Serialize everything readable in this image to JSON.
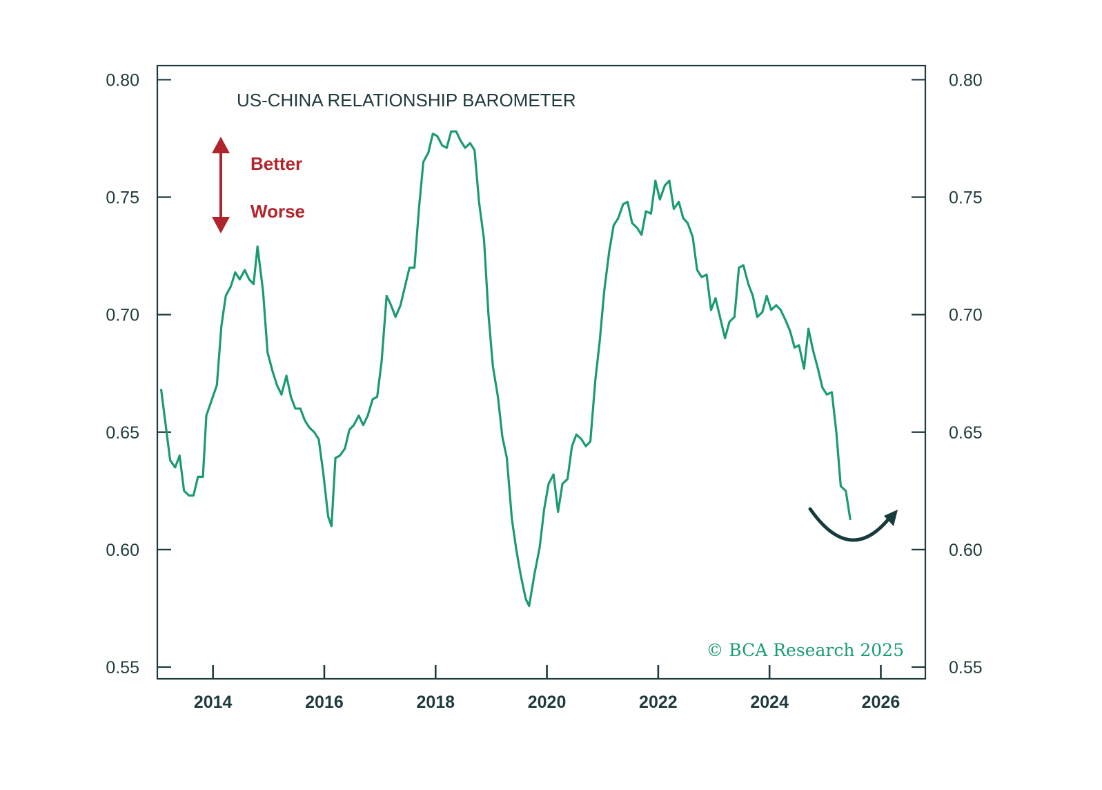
{
  "colors": {
    "line": "#1a9a73",
    "axis": "#1f3a3d",
    "arrow_legend": "#b0242b",
    "forecast_arrow": "#163b3b",
    "source": "#1a9a73"
  },
  "chart_data": {
    "type": "line",
    "title": "US-CHINA RELATIONSHIP BAROMETER",
    "xlabel": "",
    "ylabel": "",
    "xlim": [
      2013.0,
      2026.8
    ],
    "ylim": [
      0.545,
      0.806
    ],
    "y_ticks": [
      0.55,
      0.6,
      0.65,
      0.7,
      0.75,
      0.8
    ],
    "y_tick_labels": [
      "0.55",
      "0.60",
      "0.65",
      "0.70",
      "0.75",
      "0.80"
    ],
    "x_ticks": [
      2014,
      2016,
      2018,
      2020,
      2022,
      2024,
      2026
    ],
    "x_tick_labels": [
      "2014",
      "2016",
      "2018",
      "2020",
      "2022",
      "2024",
      "2026"
    ],
    "legend": {
      "up": "Better",
      "down": "Worse"
    },
    "source": "© BCA Research 2025",
    "series": [
      {
        "name": "US-China Relationship Barometer",
        "points": [
          [
            2013.07,
            0.668
          ],
          [
            2013.15,
            0.653
          ],
          [
            2013.23,
            0.638
          ],
          [
            2013.32,
            0.635
          ],
          [
            2013.4,
            0.64
          ],
          [
            2013.48,
            0.625
          ],
          [
            2013.57,
            0.623
          ],
          [
            2013.65,
            0.623
          ],
          [
            2013.73,
            0.631
          ],
          [
            2013.82,
            0.631
          ],
          [
            2013.88,
            0.657
          ],
          [
            2014.07,
            0.67
          ],
          [
            2014.15,
            0.695
          ],
          [
            2014.23,
            0.708
          ],
          [
            2014.32,
            0.712
          ],
          [
            2014.4,
            0.718
          ],
          [
            2014.48,
            0.715
          ],
          [
            2014.57,
            0.719
          ],
          [
            2014.65,
            0.715
          ],
          [
            2014.73,
            0.713
          ],
          [
            2014.8,
            0.729
          ],
          [
            2014.9,
            0.71
          ],
          [
            2014.98,
            0.684
          ],
          [
            2015.07,
            0.676
          ],
          [
            2015.15,
            0.67
          ],
          [
            2015.23,
            0.666
          ],
          [
            2015.32,
            0.674
          ],
          [
            2015.4,
            0.665
          ],
          [
            2015.48,
            0.66
          ],
          [
            2015.57,
            0.66
          ],
          [
            2015.65,
            0.655
          ],
          [
            2015.73,
            0.652
          ],
          [
            2015.82,
            0.65
          ],
          [
            2015.9,
            0.647
          ],
          [
            2015.98,
            0.633
          ],
          [
            2016.07,
            0.614
          ],
          [
            2016.13,
            0.61
          ],
          [
            2016.2,
            0.639
          ],
          [
            2016.28,
            0.64
          ],
          [
            2016.37,
            0.643
          ],
          [
            2016.45,
            0.651
          ],
          [
            2016.53,
            0.653
          ],
          [
            2016.62,
            0.657
          ],
          [
            2016.7,
            0.653
          ],
          [
            2016.78,
            0.657
          ],
          [
            2016.87,
            0.664
          ],
          [
            2016.95,
            0.665
          ],
          [
            2017.03,
            0.68
          ],
          [
            2017.12,
            0.708
          ],
          [
            2017.2,
            0.704
          ],
          [
            2017.28,
            0.699
          ],
          [
            2017.37,
            0.704
          ],
          [
            2017.45,
            0.712
          ],
          [
            2017.53,
            0.72
          ],
          [
            2017.62,
            0.72
          ],
          [
            2017.7,
            0.745
          ],
          [
            2017.78,
            0.765
          ],
          [
            2017.87,
            0.769
          ],
          [
            2017.95,
            0.777
          ],
          [
            2018.03,
            0.776
          ],
          [
            2018.12,
            0.772
          ],
          [
            2018.2,
            0.771
          ],
          [
            2018.28,
            0.778
          ],
          [
            2018.37,
            0.778
          ],
          [
            2018.45,
            0.774
          ],
          [
            2018.53,
            0.771
          ],
          [
            2018.62,
            0.773
          ],
          [
            2018.7,
            0.77
          ],
          [
            2018.78,
            0.748
          ],
          [
            2018.87,
            0.732
          ],
          [
            2018.95,
            0.7
          ],
          [
            2019.03,
            0.678
          ],
          [
            2019.12,
            0.665
          ],
          [
            2019.2,
            0.648
          ],
          [
            2019.28,
            0.639
          ],
          [
            2019.37,
            0.613
          ],
          [
            2019.45,
            0.6
          ],
          [
            2019.53,
            0.589
          ],
          [
            2019.62,
            0.579
          ],
          [
            2019.68,
            0.576
          ],
          [
            2019.78,
            0.59
          ],
          [
            2019.87,
            0.601
          ],
          [
            2019.95,
            0.617
          ],
          [
            2020.03,
            0.628
          ],
          [
            2020.12,
            0.632
          ],
          [
            2020.2,
            0.616
          ],
          [
            2020.28,
            0.628
          ],
          [
            2020.37,
            0.63
          ],
          [
            2020.45,
            0.644
          ],
          [
            2020.53,
            0.649
          ],
          [
            2020.62,
            0.647
          ],
          [
            2020.7,
            0.644
          ],
          [
            2020.78,
            0.646
          ],
          [
            2020.87,
            0.672
          ],
          [
            2020.95,
            0.689
          ],
          [
            2021.03,
            0.71
          ],
          [
            2021.12,
            0.727
          ],
          [
            2021.2,
            0.738
          ],
          [
            2021.28,
            0.741
          ],
          [
            2021.37,
            0.747
          ],
          [
            2021.45,
            0.748
          ],
          [
            2021.53,
            0.739
          ],
          [
            2021.62,
            0.737
          ],
          [
            2021.7,
            0.734
          ],
          [
            2021.78,
            0.744
          ],
          [
            2021.87,
            0.743
          ],
          [
            2021.95,
            0.757
          ],
          [
            2022.03,
            0.749
          ],
          [
            2022.12,
            0.755
          ],
          [
            2022.2,
            0.757
          ],
          [
            2022.28,
            0.745
          ],
          [
            2022.37,
            0.748
          ],
          [
            2022.45,
            0.741
          ],
          [
            2022.53,
            0.739
          ],
          [
            2022.62,
            0.733
          ],
          [
            2022.7,
            0.719
          ],
          [
            2022.78,
            0.716
          ],
          [
            2022.87,
            0.717
          ],
          [
            2022.95,
            0.702
          ],
          [
            2023.03,
            0.707
          ],
          [
            2023.12,
            0.698
          ],
          [
            2023.2,
            0.69
          ],
          [
            2023.28,
            0.697
          ],
          [
            2023.37,
            0.699
          ],
          [
            2023.45,
            0.72
          ],
          [
            2023.53,
            0.721
          ],
          [
            2023.62,
            0.713
          ],
          [
            2023.7,
            0.708
          ],
          [
            2023.78,
            0.699
          ],
          [
            2023.87,
            0.701
          ],
          [
            2023.95,
            0.708
          ],
          [
            2024.03,
            0.702
          ],
          [
            2024.12,
            0.704
          ],
          [
            2024.2,
            0.702
          ],
          [
            2024.28,
            0.698
          ],
          [
            2024.37,
            0.693
          ],
          [
            2024.45,
            0.686
          ],
          [
            2024.53,
            0.687
          ],
          [
            2024.62,
            0.677
          ],
          [
            2024.7,
            0.694
          ],
          [
            2024.78,
            0.685
          ],
          [
            2024.87,
            0.677
          ],
          [
            2024.95,
            0.669
          ],
          [
            2025.03,
            0.666
          ],
          [
            2025.12,
            0.667
          ],
          [
            2025.2,
            0.65
          ],
          [
            2025.28,
            0.627
          ],
          [
            2025.37,
            0.625
          ],
          [
            2025.45,
            0.613
          ]
        ]
      }
    ]
  }
}
